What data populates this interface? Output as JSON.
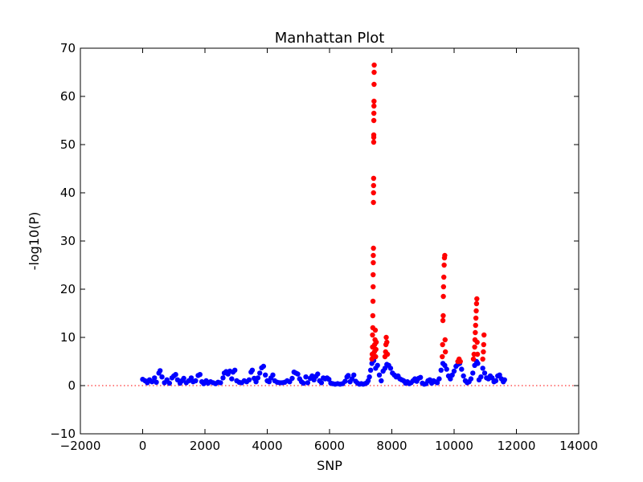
{
  "chart_data": {
    "type": "scatter",
    "title": "Manhattan Plot",
    "xlabel": "SNP",
    "ylabel": "-log10(P)",
    "xlim": [
      -2000,
      14000
    ],
    "ylim": [
      -10,
      70
    ],
    "xticks": [
      -2000,
      0,
      2000,
      4000,
      6000,
      8000,
      10000,
      12000,
      14000
    ],
    "yticks": [
      -10,
      0,
      10,
      20,
      30,
      40,
      50,
      60,
      70
    ],
    "threshold": 0,
    "threshold_color": "#ff0000",
    "grid": false,
    "series": [
      {
        "color": "#0000ff",
        "points": [
          [
            0,
            1.3
          ],
          [
            80,
            1.0
          ],
          [
            150,
            0.6
          ],
          [
            220,
            1.2
          ],
          [
            300,
            0.8
          ],
          [
            380,
            1.6
          ],
          [
            440,
            0.7
          ],
          [
            520,
            2.6
          ],
          [
            560,
            3.1
          ],
          [
            620,
            1.8
          ],
          [
            700,
            0.6
          ],
          [
            780,
            1.2
          ],
          [
            860,
            0.5
          ],
          [
            940,
            1.6
          ],
          [
            1000,
            2.0
          ],
          [
            1060,
            2.3
          ],
          [
            1120,
            1.2
          ],
          [
            1200,
            0.5
          ],
          [
            1260,
            1.0
          ],
          [
            1320,
            1.5
          ],
          [
            1400,
            0.6
          ],
          [
            1480,
            1.0
          ],
          [
            1560,
            1.6
          ],
          [
            1620,
            0.8
          ],
          [
            1700,
            1.0
          ],
          [
            1780,
            2.1
          ],
          [
            1840,
            2.3
          ],
          [
            1900,
            0.8
          ],
          [
            1960,
            0.4
          ],
          [
            2040,
            1.0
          ],
          [
            2100,
            0.5
          ],
          [
            2180,
            0.8
          ],
          [
            2260,
            0.6
          ],
          [
            2340,
            0.4
          ],
          [
            2420,
            0.7
          ],
          [
            2500,
            0.6
          ],
          [
            2580,
            1.6
          ],
          [
            2620,
            2.6
          ],
          [
            2680,
            2.9
          ],
          [
            2740,
            2.4
          ],
          [
            2800,
            3.0
          ],
          [
            2860,
            1.4
          ],
          [
            2900,
            2.8
          ],
          [
            2960,
            3.2
          ],
          [
            3020,
            1.0
          ],
          [
            3100,
            0.7
          ],
          [
            3180,
            0.6
          ],
          [
            3260,
            1.0
          ],
          [
            3340,
            0.8
          ],
          [
            3420,
            1.2
          ],
          [
            3480,
            2.8
          ],
          [
            3520,
            3.2
          ],
          [
            3580,
            1.5
          ],
          [
            3640,
            0.8
          ],
          [
            3700,
            1.6
          ],
          [
            3760,
            2.6
          ],
          [
            3820,
            3.7
          ],
          [
            3880,
            4.0
          ],
          [
            3940,
            2.2
          ],
          [
            4000,
            1.0
          ],
          [
            4060,
            0.8
          ],
          [
            4120,
            1.6
          ],
          [
            4180,
            2.2
          ],
          [
            4240,
            1.0
          ],
          [
            4320,
            0.7
          ],
          [
            4400,
            0.6
          ],
          [
            4480,
            0.6
          ],
          [
            4560,
            0.7
          ],
          [
            4640,
            1.0
          ],
          [
            4720,
            0.8
          ],
          [
            4800,
            1.5
          ],
          [
            4860,
            2.8
          ],
          [
            4920,
            2.6
          ],
          [
            4980,
            2.4
          ],
          [
            5040,
            1.4
          ],
          [
            5100,
            0.8
          ],
          [
            5160,
            0.5
          ],
          [
            5240,
            1.8
          ],
          [
            5300,
            0.6
          ],
          [
            5380,
            1.5
          ],
          [
            5440,
            2.0
          ],
          [
            5500,
            1.2
          ],
          [
            5560,
            1.9
          ],
          [
            5620,
            2.4
          ],
          [
            5680,
            1.0
          ],
          [
            5740,
            0.6
          ],
          [
            5800,
            1.6
          ],
          [
            5860,
            1.4
          ],
          [
            5920,
            1.6
          ],
          [
            5980,
            1.3
          ],
          [
            6040,
            0.5
          ],
          [
            6100,
            0.4
          ],
          [
            6180,
            0.3
          ],
          [
            6260,
            0.4
          ],
          [
            6340,
            0.3
          ],
          [
            6420,
            0.4
          ],
          [
            6500,
            0.9
          ],
          [
            6560,
            1.8
          ],
          [
            6600,
            2.1
          ],
          [
            6660,
            0.8
          ],
          [
            6720,
            1.4
          ],
          [
            6780,
            2.2
          ],
          [
            6840,
            0.9
          ],
          [
            6900,
            0.5
          ],
          [
            6960,
            0.3
          ],
          [
            7020,
            0.4
          ],
          [
            7080,
            0.3
          ],
          [
            7140,
            0.4
          ],
          [
            7200,
            0.6
          ],
          [
            7240,
            1.0
          ],
          [
            7280,
            1.8
          ],
          [
            7320,
            3.2
          ],
          [
            7360,
            4.6
          ],
          [
            7420,
            5.2
          ],
          [
            7480,
            3.6
          ],
          [
            7540,
            4.2
          ],
          [
            7600,
            2.2
          ],
          [
            7660,
            1.0
          ],
          [
            7720,
            3.0
          ],
          [
            7780,
            3.6
          ],
          [
            7840,
            4.4
          ],
          [
            7900,
            4.2
          ],
          [
            7960,
            3.6
          ],
          [
            8020,
            2.6
          ],
          [
            8080,
            2.2
          ],
          [
            8140,
            1.8
          ],
          [
            8200,
            2.0
          ],
          [
            8260,
            1.4
          ],
          [
            8320,
            1.2
          ],
          [
            8380,
            1.0
          ],
          [
            8440,
            0.5
          ],
          [
            8500,
            0.8
          ],
          [
            8560,
            0.4
          ],
          [
            8620,
            0.6
          ],
          [
            8680,
            1.0
          ],
          [
            8740,
            1.4
          ],
          [
            8800,
            0.9
          ],
          [
            8860,
            1.5
          ],
          [
            8920,
            1.7
          ],
          [
            8980,
            0.5
          ],
          [
            9040,
            0.3
          ],
          [
            9100,
            0.4
          ],
          [
            9160,
            1.0
          ],
          [
            9220,
            1.2
          ],
          [
            9280,
            0.5
          ],
          [
            9340,
            1.0
          ],
          [
            9400,
            0.8
          ],
          [
            9460,
            0.6
          ],
          [
            9520,
            1.4
          ],
          [
            9580,
            3.2
          ],
          [
            9640,
            4.6
          ],
          [
            9700,
            4.2
          ],
          [
            9760,
            3.4
          ],
          [
            9820,
            2.0
          ],
          [
            9880,
            1.4
          ],
          [
            9940,
            2.2
          ],
          [
            10000,
            3.0
          ],
          [
            10060,
            4.0
          ],
          [
            10120,
            4.4
          ],
          [
            10180,
            4.6
          ],
          [
            10240,
            3.4
          ],
          [
            10300,
            2.0
          ],
          [
            10360,
            1.0
          ],
          [
            10420,
            0.6
          ],
          [
            10480,
            0.8
          ],
          [
            10540,
            1.4
          ],
          [
            10600,
            2.6
          ],
          [
            10660,
            4.2
          ],
          [
            10720,
            5.0
          ],
          [
            10760,
            4.6
          ],
          [
            10800,
            1.2
          ],
          [
            10860,
            1.8
          ],
          [
            10920,
            3.6
          ],
          [
            10980,
            2.6
          ],
          [
            11040,
            1.6
          ],
          [
            11100,
            1.4
          ],
          [
            11160,
            2.0
          ],
          [
            11220,
            1.6
          ],
          [
            11280,
            0.8
          ],
          [
            11340,
            1.0
          ],
          [
            11400,
            2.0
          ],
          [
            11460,
            2.2
          ],
          [
            11520,
            1.4
          ],
          [
            11580,
            0.8
          ],
          [
            11620,
            1.2
          ]
        ]
      },
      {
        "color": "#ff0000",
        "points": [
          [
            7360,
            5.5
          ],
          [
            7370,
            6.5
          ],
          [
            7380,
            8.0
          ],
          [
            7380,
            10.5
          ],
          [
            7390,
            12.0
          ],
          [
            7390,
            14.5
          ],
          [
            7395,
            17.5
          ],
          [
            7400,
            20.5
          ],
          [
            7400,
            23.0
          ],
          [
            7405,
            25.5
          ],
          [
            7405,
            27.0
          ],
          [
            7410,
            28.5
          ],
          [
            7410,
            38.0
          ],
          [
            7412,
            40.0
          ],
          [
            7414,
            41.5
          ],
          [
            7416,
            43.0
          ],
          [
            7418,
            50.5
          ],
          [
            7420,
            51.5
          ],
          [
            7420,
            52.0
          ],
          [
            7422,
            55.0
          ],
          [
            7424,
            56.5
          ],
          [
            7426,
            58.0
          ],
          [
            7428,
            59.0
          ],
          [
            7430,
            62.5
          ],
          [
            7432,
            65.0
          ],
          [
            7434,
            66.5
          ],
          [
            7440,
            7.0
          ],
          [
            7450,
            8.5
          ],
          [
            7460,
            9.5
          ],
          [
            7470,
            11.5
          ],
          [
            7480,
            6.0
          ],
          [
            7490,
            7.5
          ],
          [
            7500,
            9.0
          ],
          [
            7780,
            6.0
          ],
          [
            7800,
            7.0
          ],
          [
            7810,
            8.5
          ],
          [
            7820,
            10.0
          ],
          [
            7840,
            9.0
          ],
          [
            7860,
            6.5
          ],
          [
            9620,
            6.0
          ],
          [
            9630,
            8.5
          ],
          [
            9640,
            13.5
          ],
          [
            9650,
            14.5
          ],
          [
            9655,
            18.5
          ],
          [
            9660,
            20.5
          ],
          [
            9670,
            22.5
          ],
          [
            9680,
            25.0
          ],
          [
            9690,
            26.5
          ],
          [
            9700,
            27.0
          ],
          [
            9710,
            9.5
          ],
          [
            9720,
            7.0
          ],
          [
            10120,
            5.0
          ],
          [
            10160,
            5.5
          ],
          [
            10200,
            5.0
          ],
          [
            10620,
            5.5
          ],
          [
            10640,
            6.5
          ],
          [
            10660,
            8.0
          ],
          [
            10670,
            9.5
          ],
          [
            10680,
            11.0
          ],
          [
            10690,
            12.5
          ],
          [
            10700,
            14.0
          ],
          [
            10710,
            15.5
          ],
          [
            10720,
            17.0
          ],
          [
            10730,
            18.0
          ],
          [
            10740,
            9.0
          ],
          [
            10750,
            6.5
          ],
          [
            10920,
            5.5
          ],
          [
            10940,
            7.0
          ],
          [
            10950,
            8.5
          ],
          [
            10960,
            10.5
          ]
        ]
      }
    ]
  }
}
